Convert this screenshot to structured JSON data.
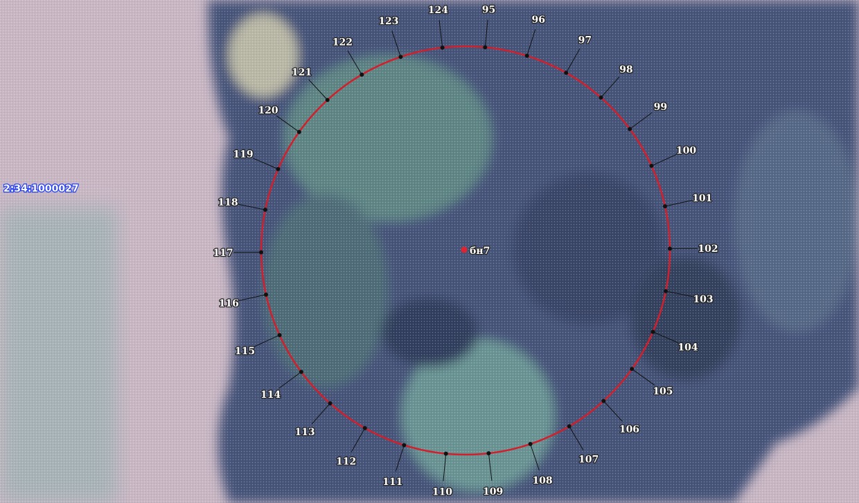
{
  "map": {
    "parcel_label": "2:34:1000027",
    "center_label": "бн7",
    "colors": {
      "boundary": "#d21f2b",
      "vertex": "#111111",
      "field": "#c8b6c2",
      "forest_dark": "#3d4a6b",
      "forest_light": "#5e7f86",
      "parcel_label_color": "#1f3cff"
    },
    "boundary_points": [
      {
        "label": "95"
      },
      {
        "label": "96"
      },
      {
        "label": "97"
      },
      {
        "label": "98"
      },
      {
        "label": "99"
      },
      {
        "label": "100"
      },
      {
        "label": "101"
      },
      {
        "label": "102"
      },
      {
        "label": "103"
      },
      {
        "label": "104"
      },
      {
        "label": "105"
      },
      {
        "label": "106"
      },
      {
        "label": "107"
      },
      {
        "label": "108"
      },
      {
        "label": "109"
      },
      {
        "label": "110"
      },
      {
        "label": "111"
      },
      {
        "label": "112"
      },
      {
        "label": "113"
      },
      {
        "label": "114"
      },
      {
        "label": "115"
      },
      {
        "label": "116"
      },
      {
        "label": "117"
      },
      {
        "label": "118"
      },
      {
        "label": "119"
      },
      {
        "label": "120"
      },
      {
        "label": "121"
      },
      {
        "label": "122"
      },
      {
        "label": "123"
      },
      {
        "label": "124"
      }
    ]
  }
}
